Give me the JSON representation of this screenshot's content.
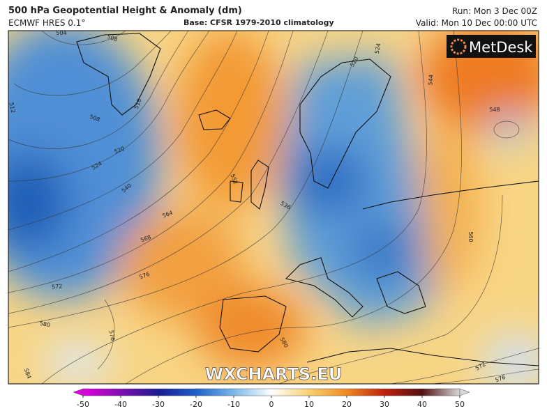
{
  "header": {
    "title": "500 hPa Geopotential Height & Anomaly (dm)",
    "model": "ECMWF HRES 0.1°",
    "base": "Base: CFSR 1979-2010 climatology",
    "run": "Run: Mon 3 Dec 00Z",
    "valid": "Valid: Mon 10 Dec 00:00 UTC"
  },
  "map": {
    "logo": "MetDesk",
    "watermark": "WXCHARTS.EU",
    "contour_labels": [
      504,
      508,
      512,
      516,
      508,
      520,
      524,
      540,
      552,
      536,
      564,
      568,
      572,
      576,
      580,
      576,
      584,
      580,
      520,
      524,
      544,
      548,
      560,
      572,
      576
    ]
  },
  "colorbar": {
    "range": [
      -50,
      50
    ],
    "ticks": [
      -50,
      -40,
      -30,
      -20,
      -10,
      0,
      10,
      20,
      30,
      40,
      50
    ]
  }
}
